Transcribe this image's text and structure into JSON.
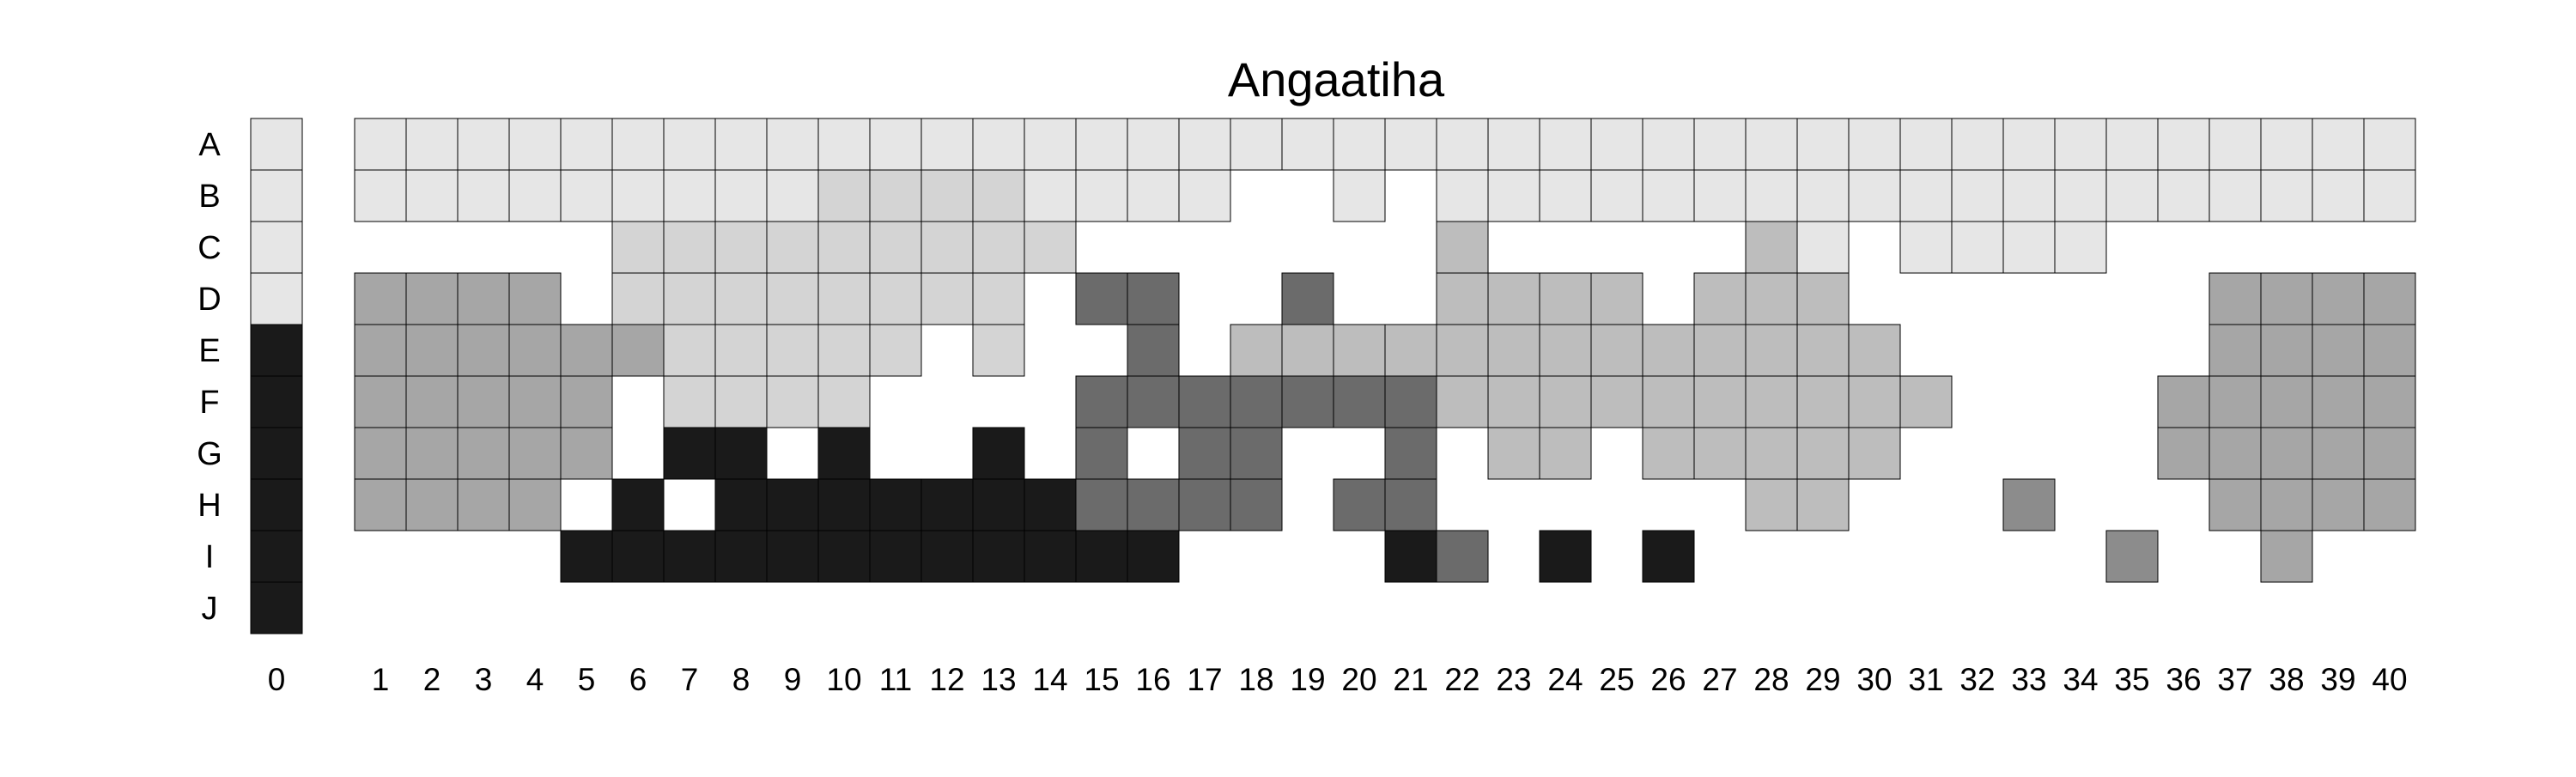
{
  "chart_data": {
    "type": "heatmap",
    "title": "Angaatiha",
    "row_labels": [
      "A",
      "B",
      "C",
      "D",
      "E",
      "F",
      "G",
      "H",
      "I",
      "J"
    ],
    "column_labels": [
      "0",
      "1",
      "2",
      "3",
      "4",
      "5",
      "6",
      "7",
      "8",
      "9",
      "10",
      "11",
      "12",
      "13",
      "14",
      "15",
      "16",
      "17",
      "18",
      "19",
      "20",
      "21",
      "22",
      "23",
      "24",
      "25",
      "26",
      "27",
      "28",
      "29",
      "30",
      "31",
      "32",
      "33",
      "34",
      "35",
      "36",
      "37",
      "38",
      "39",
      "40"
    ],
    "shade_colors": {
      "0": "#e6e6e6",
      "1": "#d4d4d4",
      "2": "#bdbdbd",
      "3": "#a6a6a6",
      "4": "#8c8c8c",
      "5": "#6b6b6b",
      "6": "#1a1a1a"
    },
    "columns": [
      [
        0,
        0,
        0,
        0,
        6,
        6,
        6,
        6,
        6,
        6
      ],
      [
        0,
        0,
        null,
        3,
        3,
        3,
        3,
        3,
        null,
        null
      ],
      [
        0,
        0,
        null,
        3,
        3,
        3,
        3,
        3,
        null,
        null
      ],
      [
        0,
        0,
        null,
        3,
        3,
        3,
        3,
        3,
        null,
        null
      ],
      [
        0,
        0,
        null,
        3,
        3,
        3,
        3,
        3,
        null,
        null
      ],
      [
        0,
        0,
        null,
        null,
        3,
        3,
        3,
        null,
        6,
        null
      ],
      [
        0,
        0,
        1,
        1,
        3,
        null,
        null,
        6,
        6,
        null
      ],
      [
        0,
        0,
        1,
        1,
        1,
        1,
        6,
        null,
        6,
        null
      ],
      [
        0,
        0,
        1,
        1,
        1,
        1,
        6,
        6,
        6,
        null
      ],
      [
        0,
        0,
        1,
        1,
        1,
        1,
        null,
        6,
        6,
        null
      ],
      [
        0,
        1,
        1,
        1,
        1,
        1,
        6,
        6,
        6,
        null
      ],
      [
        0,
        1,
        1,
        1,
        1,
        null,
        null,
        6,
        6,
        null
      ],
      [
        0,
        1,
        1,
        1,
        null,
        null,
        null,
        6,
        6,
        null
      ],
      [
        0,
        1,
        1,
        1,
        1,
        null,
        6,
        6,
        6,
        null
      ],
      [
        0,
        0,
        1,
        null,
        null,
        null,
        null,
        6,
        6,
        null
      ],
      [
        0,
        0,
        null,
        5,
        null,
        5,
        5,
        5,
        6,
        null
      ],
      [
        0,
        0,
        null,
        5,
        5,
        5,
        null,
        5,
        6,
        null
      ],
      [
        0,
        0,
        null,
        null,
        null,
        5,
        5,
        5,
        null,
        null
      ],
      [
        0,
        null,
        null,
        null,
        2,
        5,
        5,
        5,
        null,
        null
      ],
      [
        0,
        null,
        null,
        5,
        2,
        5,
        null,
        null,
        null,
        null
      ],
      [
        0,
        0,
        null,
        null,
        2,
        5,
        null,
        5,
        null,
        null
      ],
      [
        0,
        null,
        null,
        null,
        2,
        5,
        5,
        5,
        6,
        null
      ],
      [
        0,
        0,
        2,
        2,
        2,
        2,
        null,
        null,
        5,
        null
      ],
      [
        0,
        0,
        null,
        2,
        2,
        2,
        2,
        null,
        null,
        null
      ],
      [
        0,
        0,
        null,
        2,
        2,
        2,
        2,
        null,
        6,
        null
      ],
      [
        0,
        0,
        null,
        2,
        2,
        2,
        null,
        null,
        null,
        null
      ],
      [
        0,
        0,
        null,
        null,
        2,
        2,
        2,
        null,
        6,
        null
      ],
      [
        0,
        0,
        null,
        2,
        2,
        2,
        2,
        null,
        null,
        null
      ],
      [
        0,
        0,
        2,
        2,
        2,
        2,
        2,
        2,
        null,
        null
      ],
      [
        0,
        0,
        0,
        2,
        2,
        2,
        2,
        2,
        null,
        null
      ],
      [
        0,
        0,
        null,
        null,
        2,
        2,
        2,
        null,
        null,
        null
      ],
      [
        0,
        0,
        0,
        null,
        null,
        2,
        null,
        null,
        null,
        null
      ],
      [
        0,
        0,
        0,
        null,
        null,
        null,
        null,
        null,
        null,
        null
      ],
      [
        0,
        0,
        0,
        null,
        null,
        null,
        null,
        4,
        null,
        null
      ],
      [
        0,
        0,
        0,
        null,
        null,
        null,
        null,
        null,
        null,
        null
      ],
      [
        0,
        0,
        null,
        null,
        null,
        null,
        null,
        null,
        4,
        null
      ],
      [
        0,
        0,
        null,
        null,
        null,
        3,
        3,
        null,
        null,
        null
      ],
      [
        0,
        0,
        null,
        3,
        3,
        3,
        3,
        3,
        null,
        null
      ],
      [
        0,
        0,
        null,
        3,
        3,
        3,
        3,
        3,
        3,
        null
      ],
      [
        0,
        0,
        null,
        3,
        3,
        3,
        3,
        3,
        null,
        null
      ],
      [
        0,
        0,
        null,
        3,
        3,
        3,
        3,
        3,
        null,
        null
      ]
    ]
  }
}
